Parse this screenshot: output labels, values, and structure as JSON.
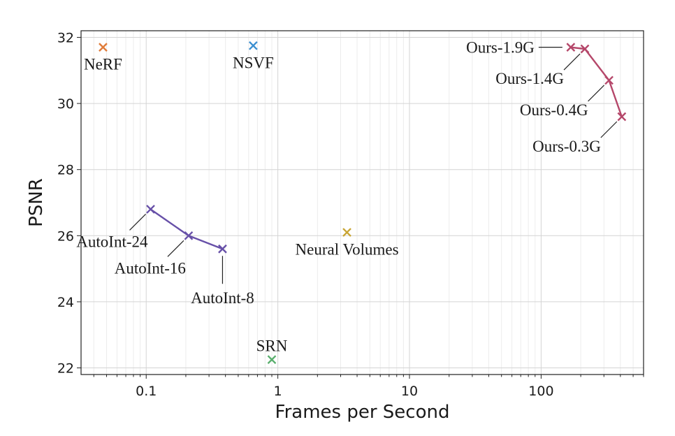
{
  "chart_data": {
    "type": "scatter",
    "title": "",
    "xlabel": "Frames per Second",
    "ylabel": "PSNR",
    "xscale": "log",
    "xlim": [
      0.032,
      600
    ],
    "ylim": [
      21.8,
      32.2
    ],
    "x_ticks": [
      {
        "value": 0.1,
        "label": "0.1"
      },
      {
        "value": 1,
        "label": "1"
      },
      {
        "value": 10,
        "label": "10"
      },
      {
        "value": 100,
        "label": "100"
      }
    ],
    "y_ticks": [
      {
        "value": 22,
        "label": "22"
      },
      {
        "value": 24,
        "label": "24"
      },
      {
        "value": 26,
        "label": "26"
      },
      {
        "value": 28,
        "label": "28"
      },
      {
        "value": 30,
        "label": "30"
      },
      {
        "value": 32,
        "label": "32"
      }
    ],
    "grid": true,
    "marker": "x",
    "series": [
      {
        "color": "#e07b39",
        "connected": false,
        "points": [
          {
            "x": 0.047,
            "y": 31.7,
            "label": "NeRF",
            "label_pos": "below"
          }
        ]
      },
      {
        "color": "#3b8fd0",
        "connected": false,
        "points": [
          {
            "x": 0.65,
            "y": 31.75,
            "label": "NSVF",
            "label_pos": "below"
          }
        ]
      },
      {
        "color": "#c8a534",
        "connected": false,
        "points": [
          {
            "x": 3.35,
            "y": 26.1,
            "label": "Neural Volumes",
            "label_pos": "below"
          }
        ]
      },
      {
        "color": "#58ae6c",
        "connected": false,
        "points": [
          {
            "x": 0.9,
            "y": 22.25,
            "label": "SRN",
            "label_pos": "above"
          }
        ]
      },
      {
        "color": "#6750a8",
        "connected": true,
        "points": [
          {
            "x": 0.108,
            "y": 26.8,
            "label": "AutoInt-24",
            "label_pos": "lower-left"
          },
          {
            "x": 0.21,
            "y": 26.0,
            "label": "AutoInt-16",
            "label_pos": "lower-left"
          },
          {
            "x": 0.38,
            "y": 25.6,
            "label": "AutoInt-8",
            "label_pos": "below"
          }
        ]
      },
      {
        "color": "#b5476a",
        "connected": true,
        "points": [
          {
            "x": 168,
            "y": 31.7,
            "label": "Ours-1.9G",
            "label_pos": "left"
          },
          {
            "x": 215,
            "y": 31.65,
            "label": "Ours-1.4G",
            "label_pos": "lower-left"
          },
          {
            "x": 328,
            "y": 30.7,
            "label": "Ours-0.4G",
            "label_pos": "lower-left"
          },
          {
            "x": 410,
            "y": 29.6,
            "label": "Ours-0.3G",
            "label_pos": "lower-left"
          }
        ]
      }
    ]
  }
}
